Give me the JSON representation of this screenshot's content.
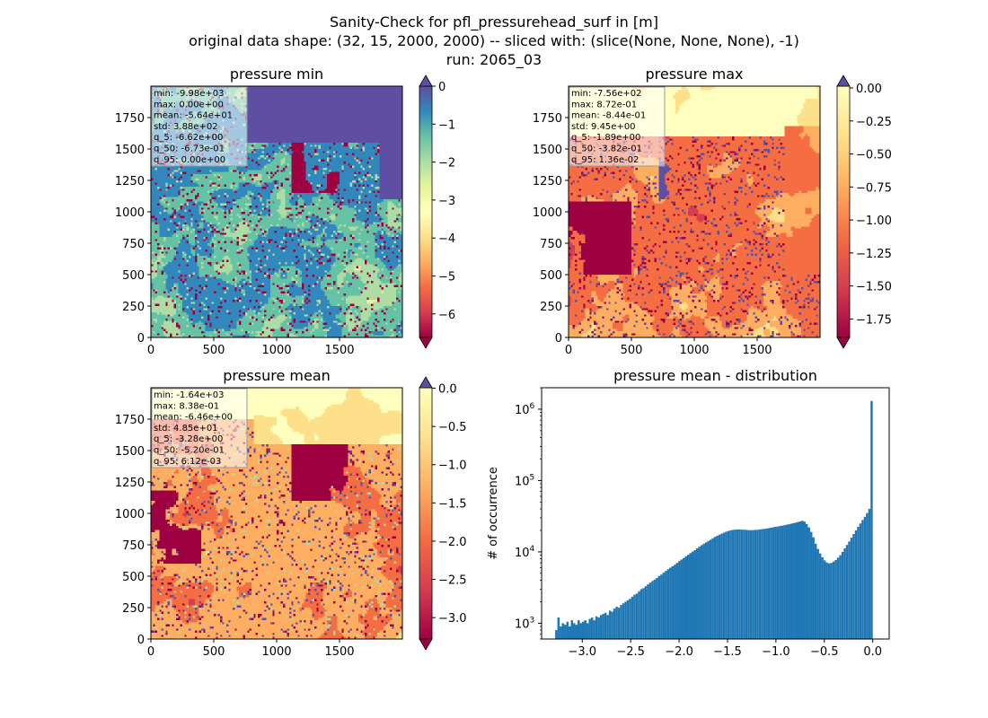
{
  "figure": {
    "title_lines": [
      "Sanity-Check for pfl_pressurehead_surf in [m]",
      "original data shape: (32, 15, 2000, 2000) -- sliced with: (slice(None, None, None), -1)",
      "run: 2065_03"
    ]
  },
  "chart_data": [
    {
      "type": "heatmap",
      "title": "pressure min",
      "colormap": "Spectral",
      "extend": "both",
      "xlim": [
        0,
        2000
      ],
      "ylim": [
        0,
        2000
      ],
      "xticks": [
        0,
        500,
        1000,
        1500
      ],
      "yticks": [
        0,
        250,
        500,
        750,
        1000,
        1250,
        1500,
        1750
      ],
      "color_range": [
        -6.62,
        0.0
      ],
      "colorbar_ticks": [
        "0",
        "−1",
        "−2",
        "−3",
        "−4",
        "−5",
        "−6"
      ],
      "colorbar_values": [
        0,
        -1,
        -2,
        -3,
        -4,
        -5,
        -6
      ],
      "stats": [
        "min: -9.98e+03",
        "max: 0.00e+00",
        "mean: -5.64e+01",
        "std: 3.88e+02",
        "q_5: -6.62e+00",
        "q_50: -6.73e-01",
        "q_95: 0.00e+00"
      ]
    },
    {
      "type": "heatmap",
      "title": "pressure max",
      "colormap": "Spectral",
      "extend": "both",
      "xlim": [
        0,
        2000
      ],
      "ylim": [
        0,
        2000
      ],
      "xticks": [
        0,
        500,
        1000,
        1500
      ],
      "yticks": [
        0,
        250,
        500,
        750,
        1000,
        1250,
        1500,
        1750
      ],
      "color_range": [
        -1.89,
        0.0136
      ],
      "colorbar_ticks": [
        "0.00",
        "−0.25",
        "−0.50",
        "−0.75",
        "−1.00",
        "−1.25",
        "−1.50",
        "−1.75"
      ],
      "colorbar_values": [
        0,
        -0.25,
        -0.5,
        -0.75,
        -1.0,
        -1.25,
        -1.5,
        -1.75
      ],
      "stats": [
        "min: -7.56e+02",
        "max: 8.72e-01",
        "mean: -8.44e-01",
        "std: 9.45e+00",
        "q_5: -1.89e+00",
        "q_50: -3.82e-01",
        "q_95: 1.36e-02"
      ]
    },
    {
      "type": "heatmap",
      "title": "pressure mean",
      "colormap": "Spectral",
      "extend": "both",
      "xlim": [
        0,
        2000
      ],
      "ylim": [
        0,
        2000
      ],
      "xticks": [
        0,
        500,
        1000,
        1500
      ],
      "yticks": [
        0,
        250,
        500,
        750,
        1000,
        1250,
        1500,
        1750
      ],
      "color_range": [
        -3.28,
        0.00612
      ],
      "colorbar_ticks": [
        "0.0",
        "−0.5",
        "−1.0",
        "−1.5",
        "−2.0",
        "−2.5",
        "−3.0"
      ],
      "colorbar_values": [
        0,
        -0.5,
        -1.0,
        -1.5,
        -2.0,
        -2.5,
        -3.0
      ],
      "stats": [
        "min: -1.64e+03",
        "max: 8.38e-01",
        "mean: -6.46e+00",
        "std: 4.85e+01",
        "q_5: -3.28e+00",
        "q_50: -5.20e-01",
        "q_95: 6.12e-03"
      ]
    },
    {
      "type": "bar",
      "title": "pressure mean - distribution",
      "ylabel": "# of occurrence",
      "yscale": "log",
      "xlim": [
        -3.42,
        0.17
      ],
      "ylim": [
        600,
        2000000
      ],
      "xticks": [
        -3.0,
        -2.5,
        -2.0,
        -1.5,
        -1.0,
        -0.5,
        0.0
      ],
      "xtick_labels": [
        "−3.0",
        "−2.5",
        "−2.0",
        "−1.5",
        "−1.0",
        "−0.5",
        "0.0"
      ],
      "ytick_labels": [
        {
          "value": 1000,
          "base": "10",
          "exp": "3"
        },
        {
          "value": 10000,
          "base": "10",
          "exp": "4"
        },
        {
          "value": 100000,
          "base": "10",
          "exp": "5"
        },
        {
          "value": 1000000,
          "base": "10",
          "exp": "6"
        }
      ],
      "bar_color": "#1f77b4",
      "bins": {
        "start": -3.28,
        "end": 0.0
      },
      "counts": [
        800,
        1200,
        900,
        1000,
        950,
        1050,
        900,
        1100,
        1000,
        950,
        1100,
        1000,
        1050,
        1100,
        1000,
        1150,
        1200,
        1100,
        1250,
        1200,
        1300,
        1350,
        1400,
        1300,
        1500,
        1450,
        1600,
        1700,
        1650,
        1800,
        1900,
        2000,
        2100,
        2200,
        2350,
        2500,
        2600,
        2800,
        3000,
        3100,
        3300,
        3500,
        3700,
        3900,
        4100,
        4300,
        4600,
        4800,
        5100,
        5400,
        5700,
        6000,
        6300,
        6600,
        7000,
        7400,
        7800,
        8200,
        8700,
        9100,
        9600,
        10100,
        10600,
        11200,
        11800,
        12400,
        13000,
        13600,
        14200,
        14800,
        15500,
        16200,
        16800,
        17400,
        18000,
        18600,
        19200,
        19600,
        20000,
        20300,
        20500,
        20600,
        20600,
        20500,
        20400,
        20300,
        20200,
        20100,
        20200,
        20300,
        20400,
        20600,
        20800,
        21000,
        21200,
        21500,
        21800,
        22100,
        22400,
        22700,
        23000,
        23300,
        23600,
        24000,
        24400,
        24800,
        25200,
        25700,
        26200,
        26700,
        27200,
        26500,
        24500,
        22000,
        19000,
        16000,
        13000,
        11000,
        9500,
        8400,
        7600,
        7100,
        6900,
        7000,
        7300,
        7700,
        8300,
        9000,
        10000,
        11200,
        12500,
        14000,
        15800,
        17800,
        20000,
        22500,
        25000,
        28000,
        31000,
        35000,
        40000,
        1300000
      ]
    }
  ]
}
